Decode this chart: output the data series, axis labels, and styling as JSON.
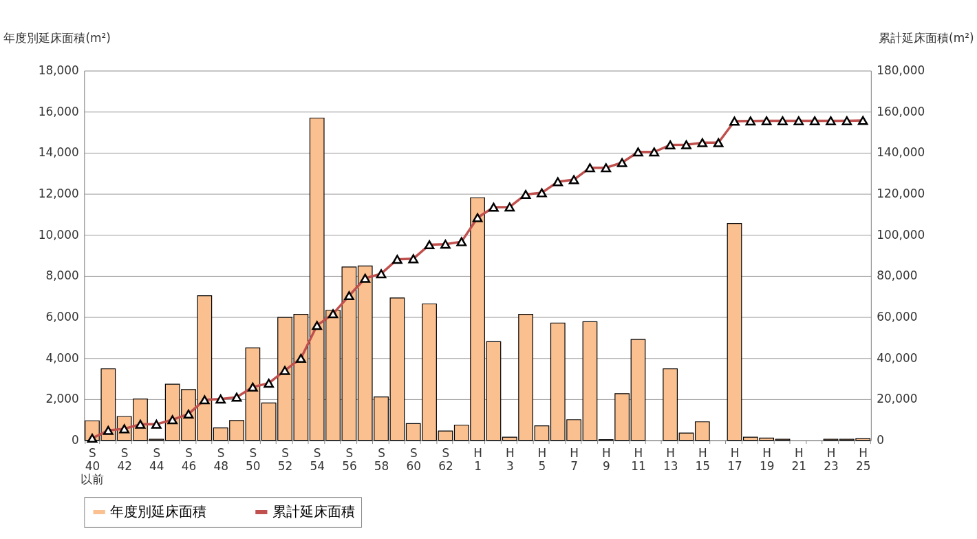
{
  "chart_data": {
    "type": "bar",
    "categories": [
      "S\n40\n以前",
      null,
      "S\n42",
      null,
      "S\n44",
      null,
      "S\n46",
      null,
      "S\n48",
      null,
      "S\n50",
      null,
      "S\n52",
      null,
      "S\n54",
      null,
      "S\n56",
      null,
      "S\n58",
      null,
      "S\n60",
      null,
      "S\n62",
      null,
      "H\n1",
      null,
      "H\n3",
      null,
      "H\n5",
      null,
      "H\n7",
      null,
      "H\n9",
      null,
      "H\n11",
      null,
      "H\n13",
      null,
      "H\n15",
      null,
      "H\n17",
      null,
      "H\n19",
      null,
      "H\n21",
      null,
      "H\n23",
      null,
      "H\n25"
    ],
    "series": [
      {
        "name": "年度別延床面積",
        "color": "#fac090",
        "values": [
          950,
          3480,
          1160,
          2010,
          50,
          2730,
          2470,
          7040,
          600,
          960,
          4500,
          1820,
          5980,
          6130,
          15690,
          6330,
          8440,
          8490,
          2110,
          6930,
          810,
          6640,
          450,
          740,
          11810,
          4800,
          150,
          6130,
          700,
          5710,
          1000,
          5770,
          30,
          2270,
          4910,
          0,
          3480,
          350,
          900,
          0,
          10560,
          150,
          110,
          50,
          0,
          0,
          50,
          50,
          80
        ]
      },
      {
        "name": "累計延床面積",
        "type": "line",
        "axis": "y2",
        "color": "#c0504d",
        "marker": "triangle",
        "values": [
          1000,
          4800,
          5600,
          7800,
          7800,
          10000,
          12800,
          19700,
          20100,
          21000,
          25900,
          27800,
          34000,
          39900,
          55900,
          61600,
          70400,
          78900,
          81100,
          88100,
          88400,
          95200,
          95500,
          96700,
          108400,
          113500,
          113600,
          119700,
          120500,
          125900,
          126900,
          132700,
          132700,
          135200,
          140400,
          140400,
          143800,
          143900,
          144900,
          144900,
          155400,
          155500,
          155600,
          155600,
          155600,
          155600,
          155600,
          155600,
          155700
        ]
      }
    ],
    "ylabel": "年度別延床面積(m²)",
    "y2label": "累計延床面積(m²)",
    "ylim": [
      0,
      18000
    ],
    "yticks": [
      0,
      {
        "value": 2000,
        "label": "2,000"
      },
      {
        "value": 4000,
        "label": "4,000"
      },
      {
        "value": 6000,
        "label": "6,000"
      },
      {
        "value": 8000,
        "label": "8,000"
      },
      {
        "value": 10000,
        "label": "10,000"
      },
      {
        "value": 12000,
        "label": "12,000"
      },
      {
        "value": 14000,
        "label": "14,000"
      },
      {
        "value": 16000,
        "label": "16,000"
      },
      {
        "value": 18000,
        "label": "18,000"
      }
    ],
    "y2lim": [
      0,
      180000
    ],
    "y2ticks": [
      0,
      {
        "value": 20000,
        "label": "20,000"
      },
      {
        "value": 40000,
        "label": "40,000"
      },
      {
        "value": 60000,
        "label": "60,000"
      },
      {
        "value": 80000,
        "label": "80,000"
      },
      {
        "value": 100000,
        "label": "100,000"
      },
      {
        "value": 120000,
        "label": "120,000"
      },
      {
        "value": 140000,
        "label": "140,000"
      },
      {
        "value": 160000,
        "label": "160,000"
      },
      {
        "value": 180000,
        "label": "180,000"
      }
    ],
    "grid": "y",
    "legend": "bottom"
  }
}
